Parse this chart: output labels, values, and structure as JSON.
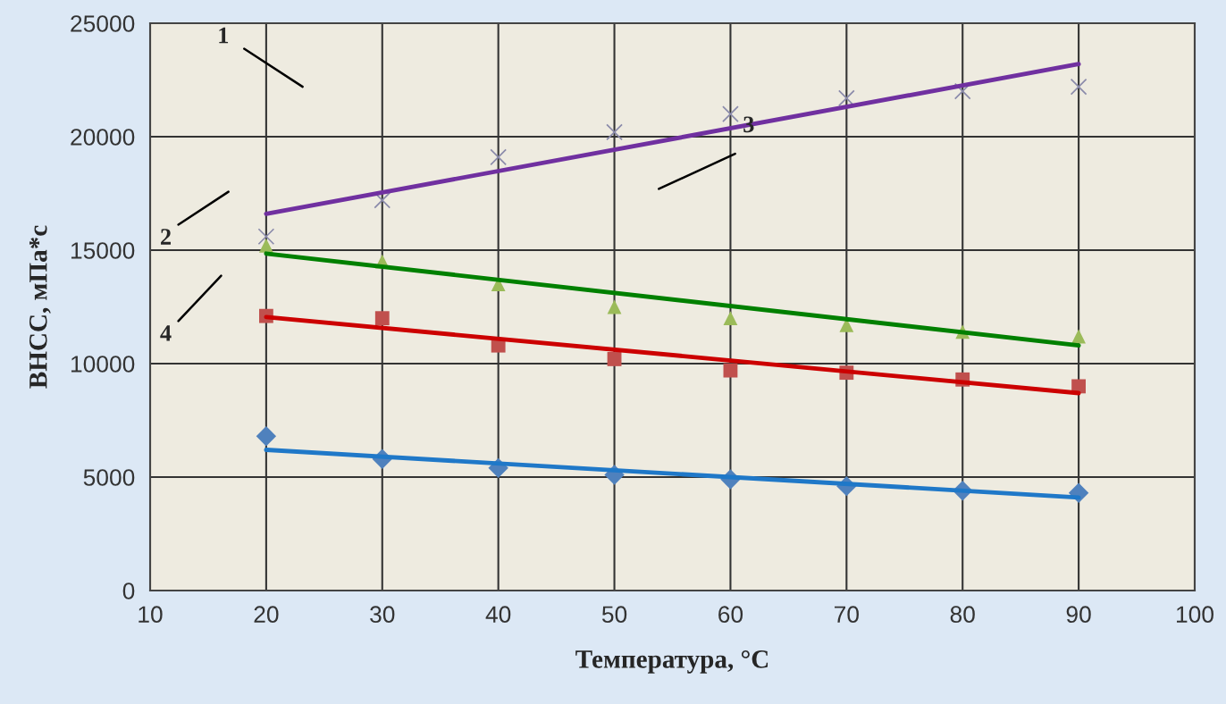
{
  "chart_data": {
    "type": "scatter",
    "xlabel": "Температура, °C",
    "ylabel": "ВНСС, мПа*с",
    "xlim": [
      10,
      100
    ],
    "xticks": [
      10,
      20,
      30,
      40,
      50,
      60,
      70,
      80,
      90,
      100
    ],
    "ylim": [
      0,
      25000
    ],
    "yticks": [
      0,
      5000,
      10000,
      15000,
      20000,
      25000
    ],
    "grid": true,
    "annotations": [
      "1",
      "2",
      "3",
      "4"
    ],
    "series": [
      {
        "marker": "diamond",
        "color": "#4f81bd",
        "x": [
          20,
          30,
          40,
          50,
          60,
          70,
          80,
          90
        ],
        "values": [
          6800,
          5800,
          5400,
          5100,
          4900,
          4600,
          4400,
          4300
        ]
      },
      {
        "type": "line",
        "color": "#1f78c8",
        "x": [
          20,
          90
        ],
        "values": [
          6200,
          4100
        ]
      },
      {
        "marker": "square",
        "color": "#c0504d",
        "x": [
          20,
          30,
          40,
          50,
          60,
          70,
          80,
          90
        ],
        "values": [
          12100,
          12000,
          10800,
          10200,
          9700,
          9600,
          9300,
          9000
        ]
      },
      {
        "type": "line",
        "color": "#cc0000",
        "x": [
          20,
          90
        ],
        "values": [
          12050,
          8700
        ]
      },
      {
        "marker": "triangle",
        "color": "#9bbb59",
        "x": [
          20,
          30,
          40,
          50,
          60,
          70,
          80,
          90
        ],
        "values": [
          15200,
          14500,
          13500,
          12500,
          12000,
          11700,
          11400,
          11200
        ]
      },
      {
        "type": "line",
        "color": "#008000",
        "x": [
          20,
          90
        ],
        "values": [
          14850,
          10800
        ]
      },
      {
        "marker": "cross",
        "color": "#8a8aaa",
        "x": [
          20,
          30,
          40,
          50,
          60,
          70,
          80,
          90
        ],
        "values": [
          15600,
          17200,
          19100,
          20200,
          21000,
          21700,
          22000,
          22200
        ]
      },
      {
        "type": "line",
        "color": "#7030a0",
        "x": [
          20,
          90
        ],
        "values": [
          16600,
          23200
        ]
      }
    ]
  }
}
